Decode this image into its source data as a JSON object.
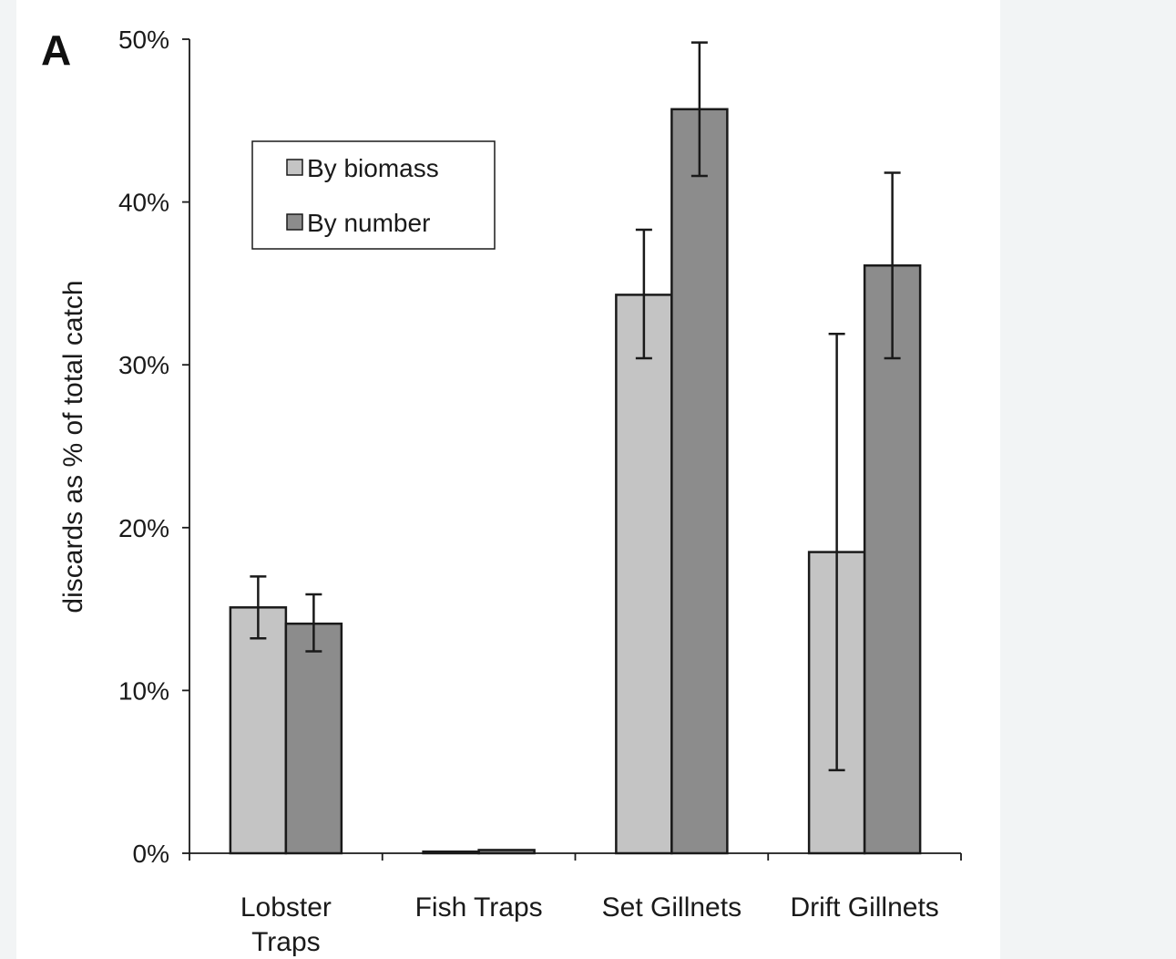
{
  "colors": {
    "background": "#ffffff",
    "side_panel": "#f2f4f5",
    "series_biomass": "#c4c4c4",
    "series_number": "#8c8c8c",
    "stroke": "#1a1a1a"
  },
  "chart_data": {
    "type": "bar",
    "panel_label": "A",
    "title": "",
    "xlabel": "",
    "ylabel": "discards as % of total catch",
    "ylim": [
      0,
      50
    ],
    "yticks": [
      0,
      10,
      20,
      30,
      40,
      50
    ],
    "ytick_labels": [
      "0%",
      "10%",
      "20%",
      "30%",
      "40%",
      "50%"
    ],
    "grid": false,
    "legend_position": "top-left",
    "categories": [
      [
        "Lobster",
        "Traps"
      ],
      [
        "Fish Traps"
      ],
      [
        "Set Gillnets"
      ],
      [
        "Drift Gillnets"
      ]
    ],
    "series": [
      {
        "name": "By biomass",
        "color": "#c4c4c4",
        "values": [
          15.1,
          0.1,
          34.3,
          18.5
        ],
        "error_low": [
          13.2,
          0.1,
          30.4,
          5.1
        ],
        "error_high": [
          17.0,
          0.1,
          38.3,
          31.9
        ]
      },
      {
        "name": "By number",
        "color": "#8c8c8c",
        "values": [
          14.1,
          0.2,
          45.7,
          36.1
        ],
        "error_low": [
          12.4,
          0.2,
          41.6,
          30.4
        ],
        "error_high": [
          15.9,
          0.3,
          49.8,
          41.8
        ]
      }
    ]
  }
}
